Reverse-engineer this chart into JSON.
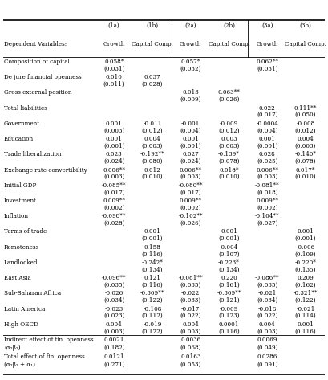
{
  "col_groups": [
    "(1a)",
    "(1b)",
    "(2a)",
    "(2b)",
    "(3a)",
    "(3b)"
  ],
  "col_labels": [
    "Growth",
    "Capital Comp.",
    "Growth",
    "Capital Comp.",
    "Growth",
    "Capital Comp."
  ],
  "rows": [
    {
      "label": "Composition of capital",
      "vals": [
        "0.058*",
        "",
        "0.057*",
        "",
        "0.062**",
        ""
      ],
      "se": [
        "(0.031)",
        "",
        "(0.032)",
        "",
        "(0.031)",
        ""
      ]
    },
    {
      "label": "De jure financial openness",
      "vals": [
        "0.010",
        "0.037",
        "",
        "",
        "",
        ""
      ],
      "se": [
        "(0.011)",
        "(0.028)",
        "",
        "",
        "",
        ""
      ]
    },
    {
      "label": "Gross external position",
      "vals": [
        "",
        "",
        "0.013",
        "0.063**",
        "",
        ""
      ],
      "se": [
        "",
        "",
        "(0.009)",
        "(0.026)",
        "",
        ""
      ]
    },
    {
      "label": "Total liabilities",
      "vals": [
        "",
        "",
        "",
        "",
        "0.022",
        "0.111**"
      ],
      "se": [
        "",
        "",
        "",
        "",
        "(0.017)",
        "(0.050)"
      ]
    },
    {
      "label": "Government",
      "vals": [
        "0.001",
        "-0.011",
        "-0.001",
        "-0.009",
        "-0.0004",
        "-0.008"
      ],
      "se": [
        "(0.003)",
        "(0.012)",
        "(0.004)",
        "(0.012)",
        "(0.004)",
        "(0.012)"
      ]
    },
    {
      "label": "Education",
      "vals": [
        "0.001",
        "0.004",
        "0.001",
        "0.003",
        "0.001",
        "0.004"
      ],
      "se": [
        "(0.001)",
        "(0.003)",
        "(0.001)",
        "(0.003)",
        "(0.001)",
        "(0.003)"
      ]
    },
    {
      "label": "Trade liberalization",
      "vals": [
        "0.023",
        "-0.192**",
        "0.027",
        "-0.139*",
        "0.028",
        "-0.140*"
      ],
      "se": [
        "(0.024)",
        "(0.080)",
        "(0.024)",
        "(0.078)",
        "(0.025)",
        "(0.078)"
      ]
    },
    {
      "label": "Exchange rate convertibility",
      "vals": [
        "0.006**",
        "0.012",
        "0.006**",
        "0.018*",
        "0.006**",
        "0.017*"
      ],
      "se": [
        "(0.003)",
        "(0.010)",
        "(0.003)",
        "(0.010)",
        "(0.003)",
        "(0.010)"
      ]
    },
    {
      "label": "Initial GDP",
      "vals": [
        "-0.085**",
        "",
        "-0.080**",
        "",
        "-0.081**",
        ""
      ],
      "se": [
        "(0.017)",
        "",
        "(0.017)",
        "",
        "(0.018)",
        ""
      ]
    },
    {
      "label": "Investment",
      "vals": [
        "0.009**",
        "",
        "0.009**",
        "",
        "0.009**",
        ""
      ],
      "se": [
        "(0.002)",
        "",
        "(0.002)",
        "",
        "(0.002)",
        ""
      ]
    },
    {
      "label": "Inflation",
      "vals": [
        "-0.098**",
        "",
        "-0.102**",
        "",
        "-0.104**",
        ""
      ],
      "se": [
        "(0.028)",
        "",
        "(0.026)",
        "",
        "(0.027)",
        ""
      ]
    },
    {
      "label": "Terms of trade",
      "vals": [
        "",
        "0.001",
        "",
        "0.001",
        "",
        "0.001"
      ],
      "se": [
        "",
        "(0.001)",
        "",
        "(0.001)",
        "",
        "(0.001)"
      ]
    },
    {
      "label": "Remoteness",
      "vals": [
        "",
        "0.158",
        "",
        "-0.004",
        "",
        "-0.006"
      ],
      "se": [
        "",
        "(0.116)",
        "",
        "(0.107)",
        "",
        "(0.109)"
      ]
    },
    {
      "label": "Landlocked",
      "vals": [
        "",
        "-0.242*",
        "",
        "-0.223*",
        "",
        "-0.220*"
      ],
      "se": [
        "",
        "(0.134)",
        "",
        "(0.134)",
        "",
        "(0.135)"
      ]
    },
    {
      "label": "East Asia",
      "vals": [
        "-0.096**",
        "0.121",
        "-0.081**",
        "0.220",
        "-0.086**",
        "0.209"
      ],
      "se": [
        "(0.035)",
        "(0.116)",
        "(0.035)",
        "(0.161)",
        "(0.035)",
        "(0.162)"
      ]
    },
    {
      "label": "Sub-Saharan Africa",
      "vals": [
        "-0.026",
        "-0.309**",
        "-0.022",
        "-0.309**",
        "-0.021",
        "-0.321**"
      ],
      "se": [
        "(0.034)",
        "(0.122)",
        "(0.033)",
        "(0.121)",
        "(0.034)",
        "(0.122)"
      ]
    },
    {
      "label": "Latin America",
      "vals": [
        "-0.023",
        "-0.108",
        "-0.017",
        "-0.009",
        "-0.018",
        "-0.021"
      ],
      "se": [
        "(0.023)",
        "(0.112)",
        "(0.022)",
        "(0.123)",
        "(0.022)",
        "(0.114)"
      ]
    },
    {
      "label": "High OECD",
      "vals": [
        "0.004",
        "-0.019",
        "0.004",
        "0.0001",
        "0.004",
        "0.001"
      ],
      "se": [
        "(0.003)",
        "(0.122)",
        "(0.003)",
        "(0.116)",
        "(0.003)",
        "(0.116)"
      ]
    }
  ],
  "bottom_rows": [
    {
      "label": "Indirect effect of fin. openness",
      "val_line": [
        "0.0021",
        "",
        "0.0036",
        "",
        "0.0069",
        ""
      ],
      "se_line": [
        "(0.182)",
        "",
        "(0.068)",
        "",
        "(0.049)",
        ""
      ],
      "label2": "(α₂β₂)"
    },
    {
      "label": "Total effect of fin. openness",
      "val_line": [
        "0.0121",
        "",
        "0.0163",
        "",
        "0.0286",
        ""
      ],
      "se_line": [
        "(0.271)",
        "",
        "(0.053)",
        "",
        "(0.091)",
        ""
      ],
      "label2": "(α₂β₂ + α₁)"
    }
  ],
  "lw": 0.285,
  "fontsize": 5.2,
  "line_thick": 1.2,
  "line_thin": 0.6
}
